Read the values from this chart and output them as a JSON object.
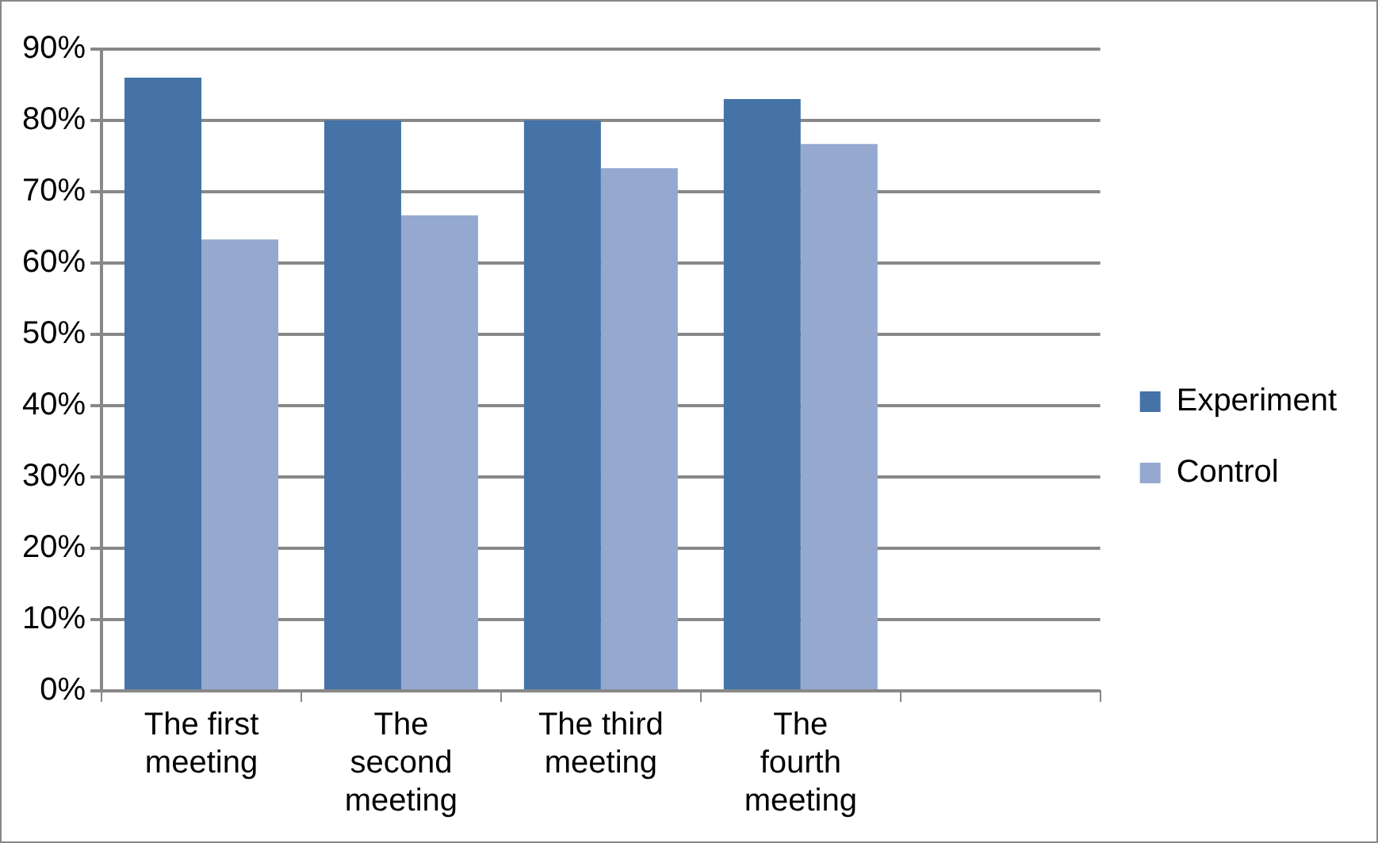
{
  "chart_data": {
    "type": "bar",
    "categories": [
      "The first meeting",
      "The second meeting",
      "The third meeting",
      "The fourth meeting",
      null
    ],
    "series": [
      {
        "name": "Experiment",
        "color": "#4572a7",
        "values": [
          86,
          80,
          80,
          83,
          null
        ]
      },
      {
        "name": "Control",
        "color": "#95a9d0",
        "values": [
          63.3,
          66.7,
          73.3,
          76.7,
          null
        ]
      }
    ],
    "ylim": [
      0,
      90
    ],
    "yticks": [
      {
        "value": 0,
        "label": "0%"
      },
      {
        "value": 10,
        "label": "10%"
      },
      {
        "value": 20,
        "label": "20%"
      },
      {
        "value": 30,
        "label": "30%"
      },
      {
        "value": 40,
        "label": "40%"
      },
      {
        "value": 50,
        "label": "50%"
      },
      {
        "value": 60,
        "label": "60%"
      },
      {
        "value": 70,
        "label": "70%"
      },
      {
        "value": 80,
        "label": "80%"
      },
      {
        "value": 90,
        "label": "90%"
      }
    ],
    "grid": "y",
    "legend": "right"
  }
}
